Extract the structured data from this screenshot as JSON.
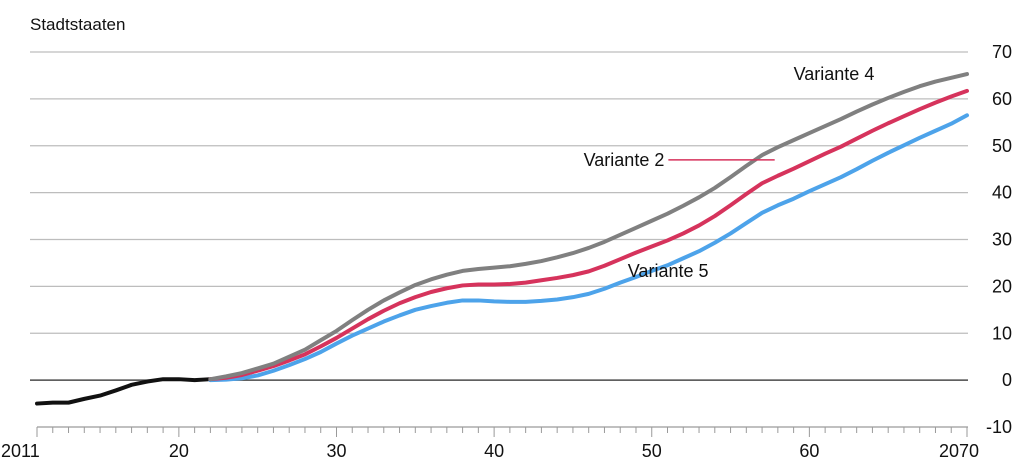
{
  "chart_data": {
    "type": "line",
    "title": "Stadtstaaten",
    "xlabel": "",
    "ylabel": "",
    "xlim": [
      2011,
      2070
    ],
    "ylim": [
      -10,
      70
    ],
    "x_ticks": [
      {
        "value": 2011,
        "label": "2011"
      },
      {
        "value": 2020,
        "label": "20"
      },
      {
        "value": 2030,
        "label": "30"
      },
      {
        "value": 2040,
        "label": "40"
      },
      {
        "value": 2050,
        "label": "50"
      },
      {
        "value": 2060,
        "label": "60"
      },
      {
        "value": 2070,
        "label": "2070"
      }
    ],
    "y_ticks": [
      {
        "value": 70,
        "label": "70"
      },
      {
        "value": 60,
        "label": "60"
      },
      {
        "value": 50,
        "label": "50"
      },
      {
        "value": 40,
        "label": "40"
      },
      {
        "value": 30,
        "label": "30"
      },
      {
        "value": 20,
        "label": "20"
      },
      {
        "value": 10,
        "label": "10"
      },
      {
        "value": 0,
        "label": "0"
      },
      {
        "value": -10,
        "label": "-10"
      }
    ],
    "grid": true,
    "y_axis_side": "right",
    "series": [
      {
        "key": "history",
        "name": "",
        "color": "#111111",
        "points": [
          [
            2011,
            -5.0
          ],
          [
            2012,
            -4.8
          ],
          [
            2013,
            -4.8
          ],
          [
            2014,
            -4.0
          ],
          [
            2015,
            -3.3
          ],
          [
            2016,
            -2.2
          ],
          [
            2017,
            -1.0
          ],
          [
            2018,
            -0.3
          ],
          [
            2019,
            0.2
          ],
          [
            2020,
            0.2
          ],
          [
            2021,
            0.0
          ],
          [
            2022,
            0.2
          ]
        ]
      },
      {
        "key": "variante_4",
        "name": "Variante 4",
        "color": "#808080",
        "points": [
          [
            2022,
            0.2
          ],
          [
            2023,
            0.8
          ],
          [
            2024,
            1.5
          ],
          [
            2025,
            2.5
          ],
          [
            2026,
            3.5
          ],
          [
            2027,
            5.0
          ],
          [
            2028,
            6.5
          ],
          [
            2029,
            8.5
          ],
          [
            2030,
            10.5
          ],
          [
            2031,
            12.8
          ],
          [
            2032,
            15.0
          ],
          [
            2033,
            17.0
          ],
          [
            2034,
            18.7
          ],
          [
            2035,
            20.3
          ],
          [
            2036,
            21.5
          ],
          [
            2037,
            22.5
          ],
          [
            2038,
            23.3
          ],
          [
            2039,
            23.7
          ],
          [
            2040,
            24.0
          ],
          [
            2041,
            24.3
          ],
          [
            2042,
            24.8
          ],
          [
            2043,
            25.4
          ],
          [
            2044,
            26.2
          ],
          [
            2045,
            27.1
          ],
          [
            2046,
            28.2
          ],
          [
            2047,
            29.5
          ],
          [
            2048,
            31.0
          ],
          [
            2049,
            32.5
          ],
          [
            2050,
            34.0
          ],
          [
            2051,
            35.5
          ],
          [
            2052,
            37.2
          ],
          [
            2053,
            39.0
          ],
          [
            2054,
            41.0
          ],
          [
            2055,
            43.3
          ],
          [
            2056,
            45.7
          ],
          [
            2057,
            48.0
          ],
          [
            2058,
            49.7
          ],
          [
            2059,
            51.2
          ],
          [
            2060,
            52.7
          ],
          [
            2061,
            54.2
          ],
          [
            2062,
            55.7
          ],
          [
            2063,
            57.3
          ],
          [
            2064,
            58.8
          ],
          [
            2065,
            60.2
          ],
          [
            2066,
            61.5
          ],
          [
            2067,
            62.7
          ],
          [
            2068,
            63.7
          ],
          [
            2069,
            64.5
          ],
          [
            2070,
            65.3
          ]
        ]
      },
      {
        "key": "variante_2",
        "name": "Variante 2",
        "color": "#d6335c",
        "points": [
          [
            2022,
            0.2
          ],
          [
            2023,
            0.5
          ],
          [
            2024,
            1.1
          ],
          [
            2025,
            2.0
          ],
          [
            2026,
            3.0
          ],
          [
            2027,
            4.2
          ],
          [
            2028,
            5.5
          ],
          [
            2029,
            7.2
          ],
          [
            2030,
            9.0
          ],
          [
            2031,
            11.0
          ],
          [
            2032,
            13.0
          ],
          [
            2033,
            14.8
          ],
          [
            2034,
            16.4
          ],
          [
            2035,
            17.7
          ],
          [
            2036,
            18.8
          ],
          [
            2037,
            19.6
          ],
          [
            2038,
            20.2
          ],
          [
            2039,
            20.4
          ],
          [
            2040,
            20.4
          ],
          [
            2041,
            20.5
          ],
          [
            2042,
            20.8
          ],
          [
            2043,
            21.3
          ],
          [
            2044,
            21.8
          ],
          [
            2045,
            22.4
          ],
          [
            2046,
            23.2
          ],
          [
            2047,
            24.4
          ],
          [
            2048,
            25.8
          ],
          [
            2049,
            27.2
          ],
          [
            2050,
            28.5
          ],
          [
            2051,
            29.8
          ],
          [
            2052,
            31.3
          ],
          [
            2053,
            33.0
          ],
          [
            2054,
            35.0
          ],
          [
            2055,
            37.3
          ],
          [
            2056,
            39.7
          ],
          [
            2057,
            42.0
          ],
          [
            2058,
            43.6
          ],
          [
            2059,
            45.1
          ],
          [
            2060,
            46.7
          ],
          [
            2061,
            48.3
          ],
          [
            2062,
            49.8
          ],
          [
            2063,
            51.5
          ],
          [
            2064,
            53.2
          ],
          [
            2065,
            54.8
          ],
          [
            2066,
            56.3
          ],
          [
            2067,
            57.8
          ],
          [
            2068,
            59.2
          ],
          [
            2069,
            60.5
          ],
          [
            2070,
            61.7
          ]
        ]
      },
      {
        "key": "variante_5",
        "name": "Variante 5",
        "color": "#4da3ea",
        "points": [
          [
            2022,
            0.0
          ],
          [
            2023,
            0.1
          ],
          [
            2024,
            0.4
          ],
          [
            2025,
            1.0
          ],
          [
            2026,
            2.0
          ],
          [
            2027,
            3.2
          ],
          [
            2028,
            4.5
          ],
          [
            2029,
            6.0
          ],
          [
            2030,
            7.8
          ],
          [
            2031,
            9.5
          ],
          [
            2032,
            11.0
          ],
          [
            2033,
            12.5
          ],
          [
            2034,
            13.8
          ],
          [
            2035,
            15.0
          ],
          [
            2036,
            15.8
          ],
          [
            2037,
            16.5
          ],
          [
            2038,
            17.0
          ],
          [
            2039,
            17.0
          ],
          [
            2040,
            16.8
          ],
          [
            2041,
            16.7
          ],
          [
            2042,
            16.7
          ],
          [
            2043,
            16.9
          ],
          [
            2044,
            17.2
          ],
          [
            2045,
            17.7
          ],
          [
            2046,
            18.4
          ],
          [
            2047,
            19.5
          ],
          [
            2048,
            20.8
          ],
          [
            2049,
            22.0
          ],
          [
            2050,
            23.3
          ],
          [
            2051,
            24.5
          ],
          [
            2052,
            26.0
          ],
          [
            2053,
            27.5
          ],
          [
            2054,
            29.3
          ],
          [
            2055,
            31.3
          ],
          [
            2056,
            33.5
          ],
          [
            2057,
            35.7
          ],
          [
            2058,
            37.3
          ],
          [
            2059,
            38.7
          ],
          [
            2060,
            40.3
          ],
          [
            2061,
            41.8
          ],
          [
            2062,
            43.3
          ],
          [
            2063,
            45.0
          ],
          [
            2064,
            46.8
          ],
          [
            2065,
            48.5
          ],
          [
            2066,
            50.1
          ],
          [
            2067,
            51.7
          ],
          [
            2068,
            53.2
          ],
          [
            2069,
            54.7
          ],
          [
            2070,
            56.5
          ]
        ]
      }
    ]
  }
}
